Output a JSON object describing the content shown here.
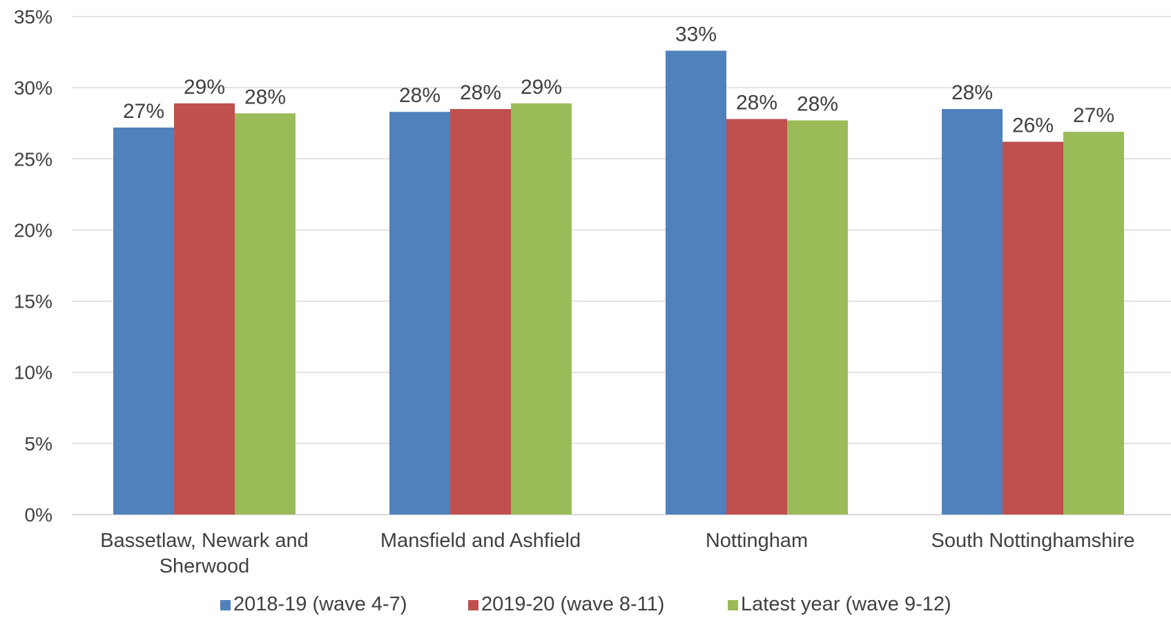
{
  "chart_data": {
    "type": "bar",
    "categories": [
      [
        "Bassetlaw, Newark and",
        "Sherwood"
      ],
      [
        "Mansfield and Ashfield"
      ],
      [
        "Nottingham"
      ],
      [
        "South Nottinghamshire"
      ]
    ],
    "series": [
      {
        "name": "2018-19 (wave 4-7)",
        "color": "#4F81BD",
        "values": [
          27.2,
          28.3,
          32.6,
          28.5
        ],
        "labels": [
          "27%",
          "28%",
          "33%",
          "28%"
        ]
      },
      {
        "name": "2019-20 (wave 8-11)",
        "color": "#C0504D",
        "values": [
          28.9,
          28.5,
          27.8,
          26.2
        ],
        "labels": [
          "29%",
          "28%",
          "28%",
          "26%"
        ]
      },
      {
        "name": "Latest year (wave 9-12)",
        "color": "#9BBB59",
        "values": [
          28.2,
          28.9,
          27.7,
          26.9
        ],
        "labels": [
          "28%",
          "29%",
          "28%",
          "27%"
        ]
      }
    ],
    "yticks": [
      0,
      5,
      10,
      15,
      20,
      25,
      30,
      35
    ],
    "ytick_labels": [
      "0%",
      "5%",
      "10%",
      "15%",
      "20%",
      "25%",
      "30%",
      "35%"
    ],
    "ylim": [
      0,
      35
    ],
    "grid": true,
    "legend_position": "bottom"
  }
}
